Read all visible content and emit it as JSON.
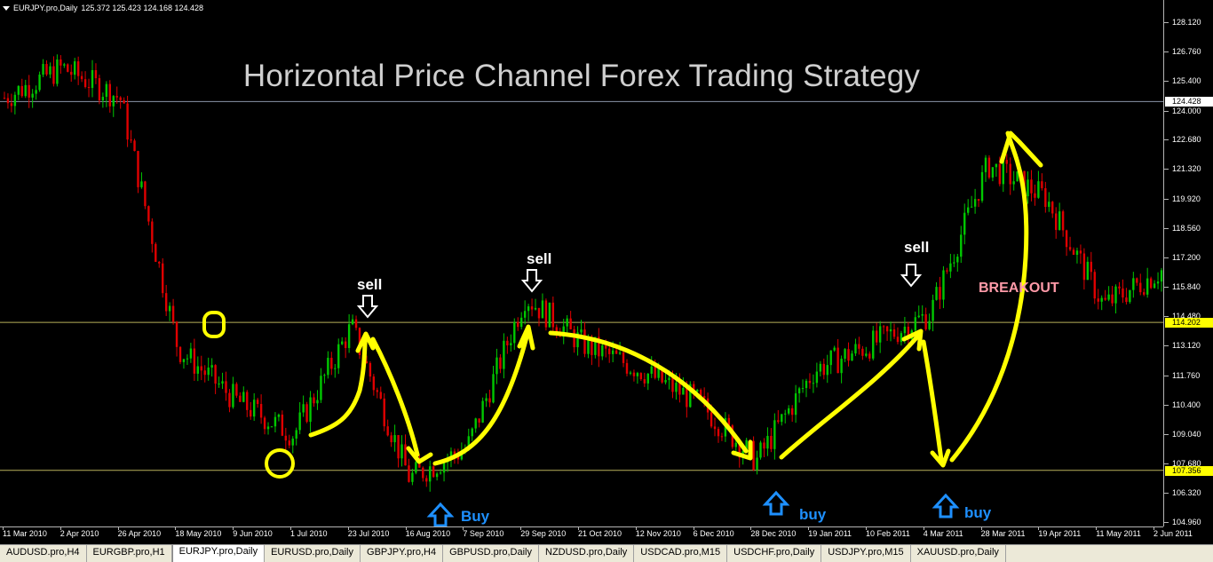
{
  "window": {
    "symbol_label": "EURJPY.pro,Daily",
    "ohlc": "125.372 125.423 124.168 124.428",
    "title": "Horizontal Price Channel Forex Trading Strategy"
  },
  "colors": {
    "bull": "#00c800",
    "bear": "#e00000",
    "channel": "#b8b05a",
    "annotation": "#ffff00",
    "buy": "#1e90ff",
    "breakout": "#ff9aa8"
  },
  "price_axis": {
    "ticks": [
      "128.120",
      "126.760",
      "125.400",
      "124.000",
      "122.680",
      "121.320",
      "119.920",
      "118.560",
      "117.200",
      "115.840",
      "114.480",
      "113.120",
      "111.760",
      "110.400",
      "109.040",
      "107.680",
      "106.320",
      "104.960"
    ],
    "markers": [
      {
        "label": "124.428",
        "bg": "#ffffff",
        "fg": "#000000",
        "name": "current-price-marker"
      },
      {
        "label": "114.202",
        "bg": "#ffff00",
        "fg": "#000000",
        "name": "resistance-price-marker"
      },
      {
        "label": "107.356",
        "bg": "#ffff00",
        "fg": "#000000",
        "name": "support-price-marker"
      }
    ]
  },
  "time_axis": {
    "labels": [
      "11 Mar 2010",
      "2 Apr 2010",
      "26 Apr 2010",
      "18 May 2010",
      "9 Jun 2010",
      "1 Jul 2010",
      "23 Jul 2010",
      "16 Aug 2010",
      "7 Sep 2010",
      "29 Sep 2010",
      "21 Oct 2010",
      "12 Nov 2010",
      "6 Dec 2010",
      "28 Dec 2010",
      "19 Jan 2011",
      "10 Feb 2011",
      "4 Mar 2011",
      "28 Mar 2011",
      "19 Apr 2011",
      "11 May 2011",
      "2 Jun 2011"
    ]
  },
  "chart_data": {
    "type": "candlestick",
    "title": "Horizontal Price Channel Forex Trading Strategy",
    "ylim": [
      104.96,
      128.8
    ],
    "horizontal_lines": [
      124.428,
      114.202,
      107.356
    ],
    "close_path": [
      [
        "11 Mar 2010",
        124.6
      ],
      [
        "2 Apr 2010",
        126.0
      ],
      [
        "26 Apr 2010",
        124.6
      ],
      [
        "18 May 2010",
        113.0
      ],
      [
        "9 Jun 2010",
        110.6
      ],
      [
        "1 Jul 2010",
        109.0
      ],
      [
        "23 Jul 2010",
        114.0
      ],
      [
        "16 Aug 2010",
        107.0
      ],
      [
        "7 Sep 2010",
        108.4
      ],
      [
        "29 Sep 2010",
        115.4
      ],
      [
        "21 Oct 2010",
        113.2
      ],
      [
        "12 Nov 2010",
        112.0
      ],
      [
        "6 Dec 2010",
        110.5
      ],
      [
        "28 Dec 2010",
        107.8
      ],
      [
        "19 Jan 2011",
        112.0
      ],
      [
        "10 Feb 2011",
        113.2
      ],
      [
        "4 Mar 2011",
        114.6
      ],
      [
        "28 Mar 2011",
        121.5
      ],
      [
        "19 Apr 2011",
        120.0
      ],
      [
        "11 May 2011",
        115.0
      ],
      [
        "2 Jun 2011",
        116.6
      ]
    ],
    "annotations": {
      "sell": [
        "sell",
        "sell",
        "sell"
      ],
      "buy": [
        "Buy",
        "buy",
        "buy"
      ],
      "breakout": "BREAKOUT"
    }
  }
}
